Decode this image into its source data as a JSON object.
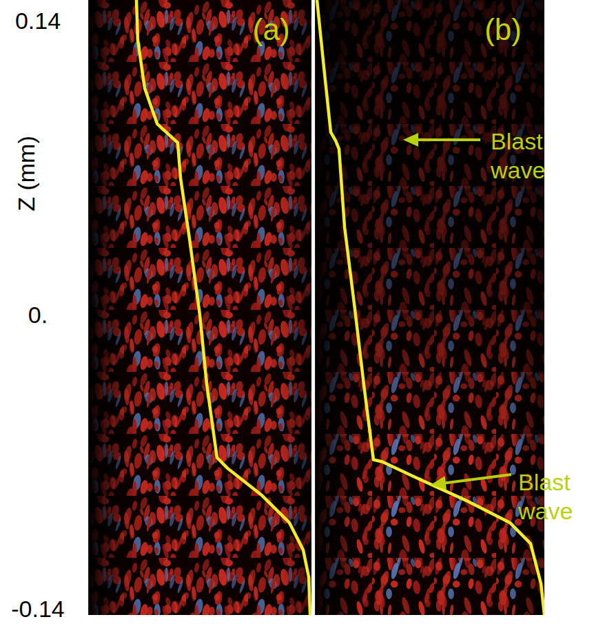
{
  "chart_data": [
    {
      "type": "line",
      "title": "(a)",
      "y_label": "Z (mm)",
      "xlim": [
        0,
        1
      ],
      "ylim": [
        -0.143,
        0.15
      ],
      "yticks": [
        -0.14,
        {
          "value": 0,
          "label": "0."
        },
        0.14
      ],
      "tick_labels": "y",
      "x": [
        0.216,
        0.222,
        0.253,
        0.309,
        0.401,
        0.414,
        0.454,
        0.5,
        0.531,
        0.577,
        0.623,
        0.778,
        0.901,
        0.963,
        0.988,
        0.994
      ],
      "series": [
        {
          "color": "#f2ec2a",
          "values": [
            0.15,
            0.131,
            0.108,
            0.091,
            0.082,
            0.065,
            0.036,
            0.0,
            -0.033,
            -0.068,
            -0.073,
            -0.086,
            -0.099,
            -0.112,
            -0.125,
            -0.143
          ]
        }
      ]
    },
    {
      "type": "line",
      "title": "(b)",
      "xlim": [
        0,
        1
      ],
      "ylim": [
        -0.143,
        0.15
      ],
      "tick_labels": false,
      "x": [
        0.009,
        0.039,
        0.069,
        0.09,
        0.105,
        0.129,
        0.174,
        0.213,
        0.255,
        0.294,
        0.429,
        0.67,
        0.85,
        0.94,
        0.985,
        1.0
      ],
      "series": [
        {
          "color": "#f2ec2a",
          "values": [
            0.15,
            0.118,
            0.087,
            0.083,
            0.079,
            0.042,
            0.003,
            -0.033,
            -0.069,
            -0.07,
            -0.077,
            -0.089,
            -0.099,
            -0.109,
            -0.128,
            -0.143
          ]
        }
      ],
      "annotations": [
        "Blast wave",
        "Blast wave"
      ]
    }
  ]
}
